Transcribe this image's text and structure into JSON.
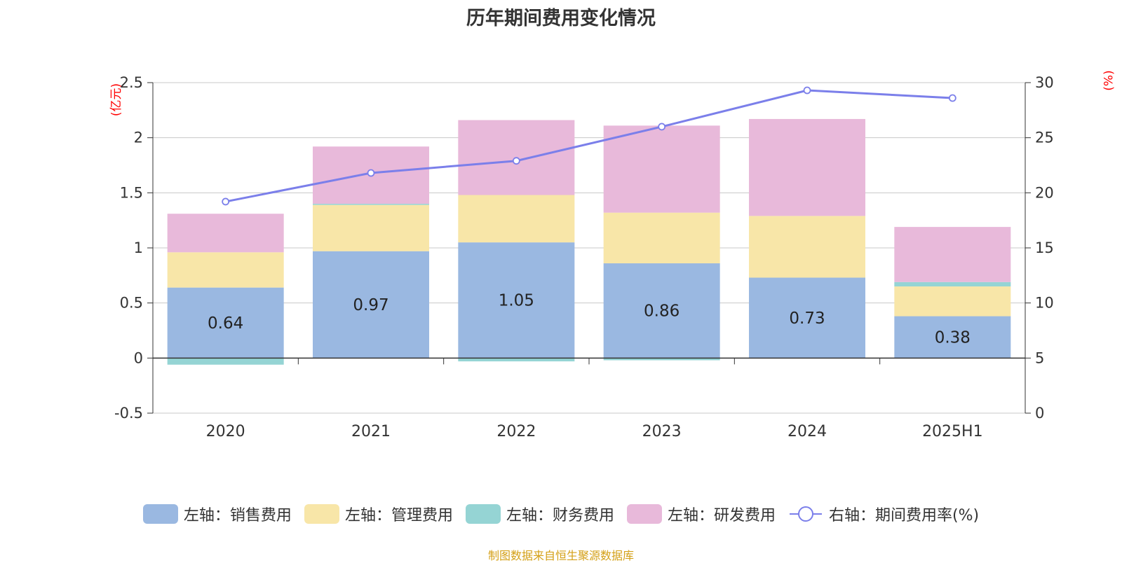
{
  "title": "历年期间费用变化情况",
  "left_axis_unit": "(亿元)",
  "right_axis_unit": "(%)",
  "source": "制图数据来自恒生聚源数据库",
  "colors": {
    "sales": "#9ab8e1",
    "admin": "#f8e6a8",
    "finance": "#95d4d4",
    "rd": "#e8b9da",
    "rate": "#7b7fea"
  },
  "chart_data": {
    "type": "bar",
    "stacked": true,
    "categories": [
      "2020",
      "2021",
      "2022",
      "2023",
      "2024",
      "2025H1"
    ],
    "series": [
      {
        "name": "左轴：销售费用",
        "axis": "left",
        "values": [
          0.64,
          0.97,
          1.05,
          0.86,
          0.73,
          0.38
        ],
        "show_labels": true
      },
      {
        "name": "左轴：管理费用",
        "axis": "left",
        "values": [
          0.32,
          0.42,
          0.43,
          0.46,
          0.56,
          0.27
        ]
      },
      {
        "name": "左轴：财务费用",
        "axis": "left",
        "values": [
          -0.06,
          0.01,
          -0.03,
          -0.02,
          0.0,
          0.04
        ]
      },
      {
        "name": "左轴：研发费用",
        "axis": "left",
        "values": [
          0.35,
          0.52,
          0.68,
          0.79,
          0.88,
          0.5
        ]
      },
      {
        "name": "右轴：期间费用率(%)",
        "axis": "right",
        "type": "line",
        "values": [
          19.2,
          21.8,
          22.9,
          26.0,
          29.3,
          28.6
        ]
      }
    ],
    "left_axis": {
      "ylim": [
        -0.5,
        2.5
      ],
      "ticks": [
        -0.5,
        0,
        0.5,
        1,
        1.5,
        2,
        2.5
      ],
      "tick_labels": [
        "-0.5",
        "0",
        "0.5",
        "1",
        "1.5",
        "2",
        "2.5"
      ]
    },
    "right_axis": {
      "ylim": [
        0,
        30
      ],
      "ticks": [
        0,
        5,
        10,
        15,
        20,
        25,
        30
      ],
      "tick_labels": [
        "0",
        "5",
        "10",
        "15",
        "20",
        "25",
        "30"
      ]
    },
    "grid": true,
    "legend_position": "bottom"
  }
}
